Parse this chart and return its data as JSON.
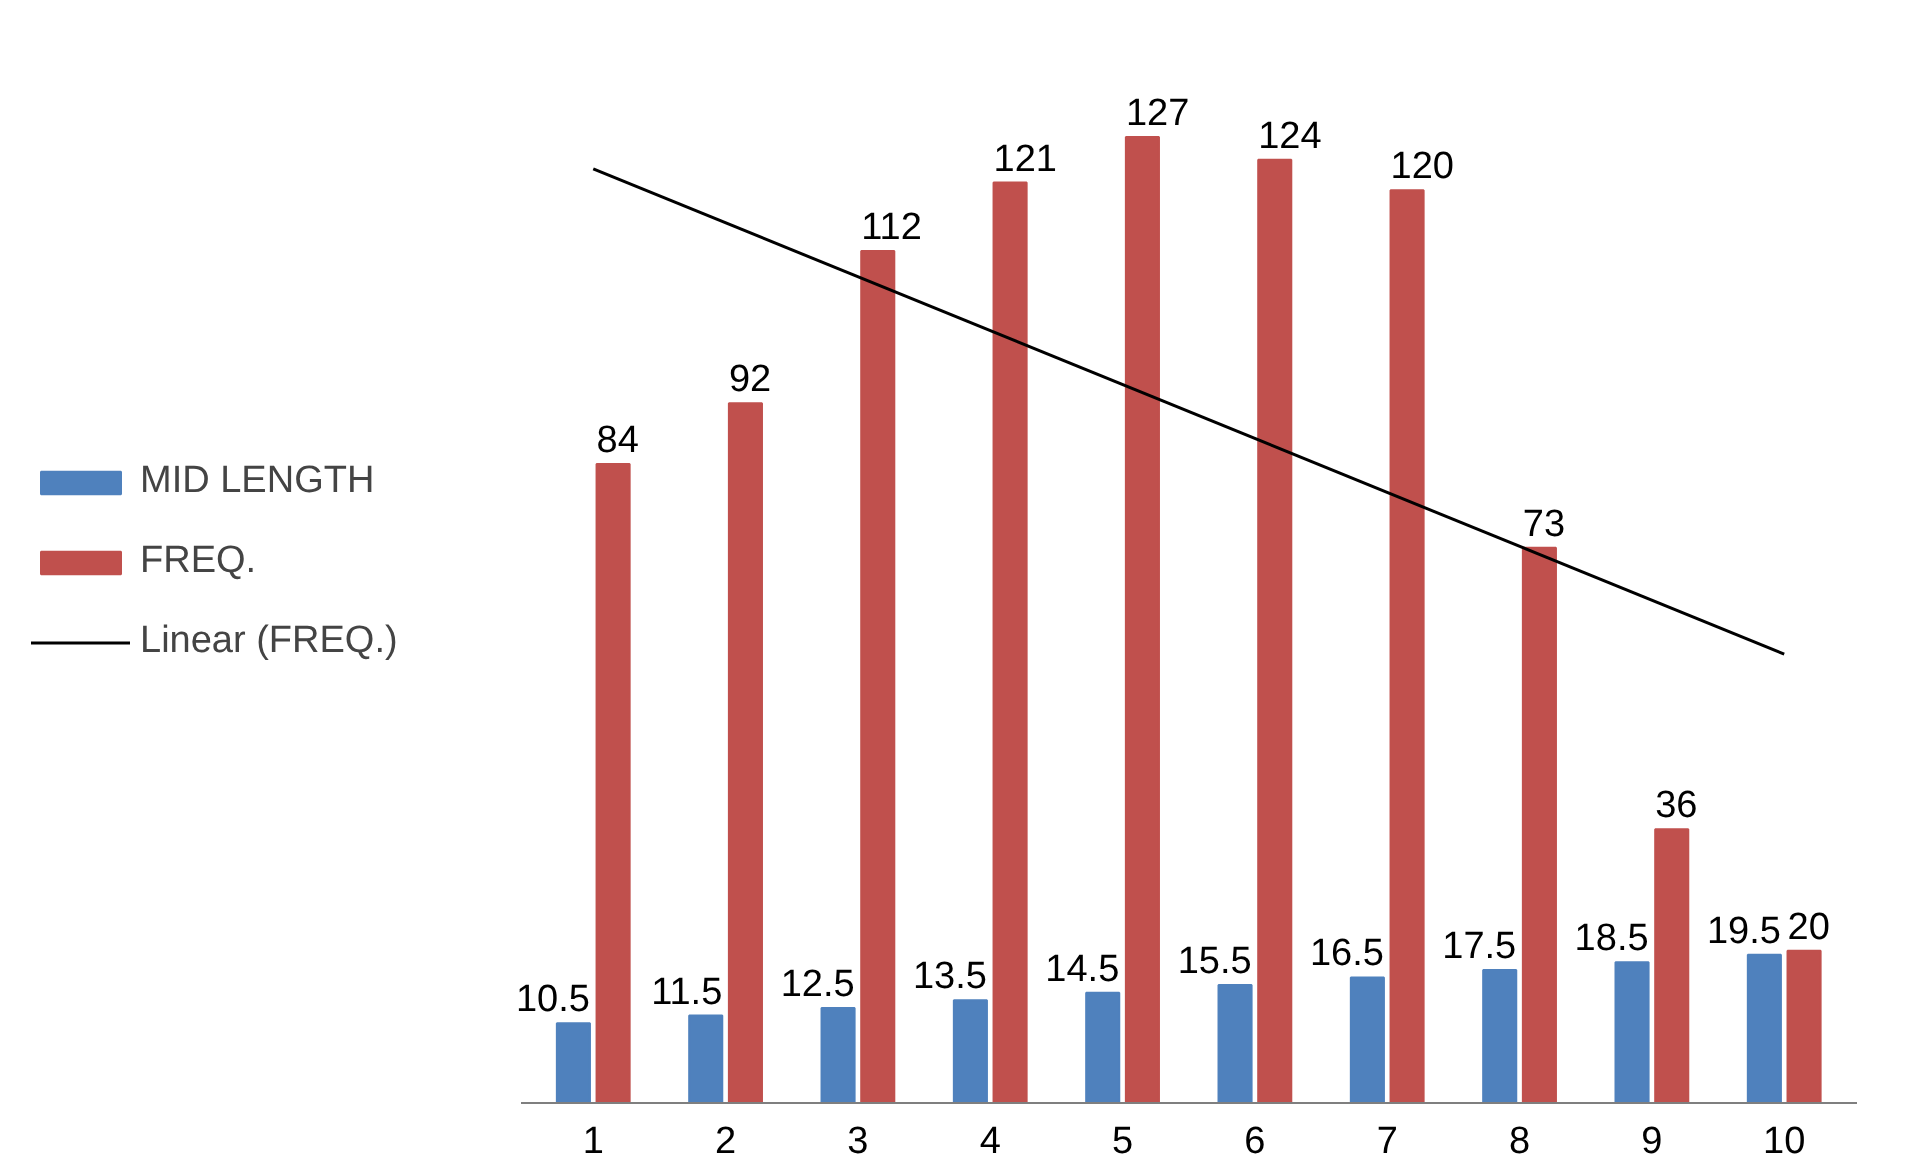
{
  "chart_data": {
    "type": "bar",
    "categories": [
      "1",
      "2",
      "3",
      "4",
      "5",
      "6",
      "7",
      "8",
      "9",
      "10"
    ],
    "series": [
      {
        "name": "MID LENGTH",
        "color": "#4f81bd",
        "values": [
          10.5,
          11.5,
          12.5,
          13.5,
          14.5,
          15.5,
          16.5,
          17.5,
          18.5,
          19.5
        ]
      },
      {
        "name": "FREQ.",
        "color": "#c0504d",
        "values": [
          84,
          92,
          112,
          121,
          127,
          124,
          120,
          73,
          36,
          20
        ]
      },
      {
        "name": "Linear (FREQ.)",
        "type": "line",
        "color": "#000000",
        "x": [
          "1",
          "10"
        ],
        "values": [
          122.8,
          59.0
        ],
        "value_labels": [
          null,
          null
        ]
      }
    ],
    "data_labels": true,
    "legend": "left",
    "grid": false,
    "tick_labels": "x"
  }
}
